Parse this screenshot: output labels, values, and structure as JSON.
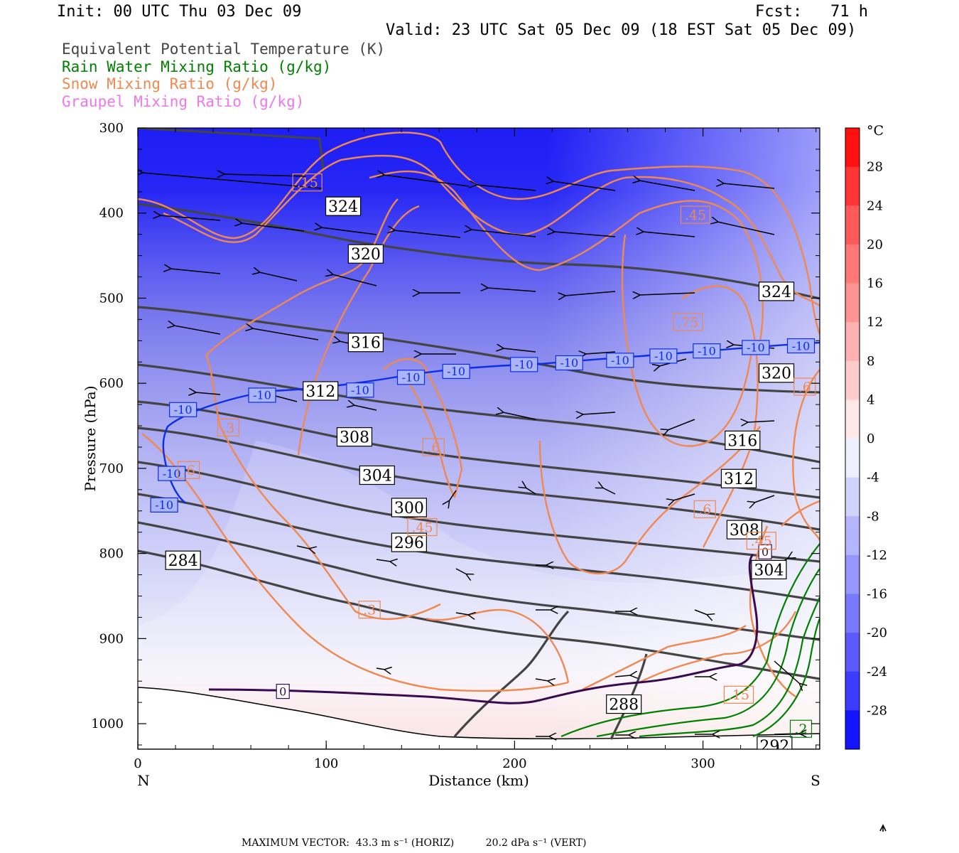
{
  "header": {
    "init": "Init: 00 UTC Thu 03 Dec 09",
    "fcst": "Fcst:   71 h",
    "valid": "Valid: 23 UTC Sat 05 Dec 09 (18 EST Sat 05 Dec 09)"
  },
  "legend": [
    {
      "label": "Equivalent Potential Temperature (K)",
      "color": "#444444"
    },
    {
      "label": "Rain Water Mixing Ratio (g/kg)",
      "color": "#008000"
    },
    {
      "label": "Snow Mixing Ratio (g/kg)",
      "color": "#f08850"
    },
    {
      "label": "Graupel Mixing Ratio (g/kg)",
      "color": "#ee77ee"
    }
  ],
  "chart_data": {
    "type": "cross-section",
    "xlabel": "Distance (km)",
    "ylabel": "Pressure (hPa)",
    "x_ticks": [
      0,
      100,
      200,
      300
    ],
    "y_ticks": [
      300,
      400,
      500,
      600,
      700,
      800,
      900,
      1000
    ],
    "xlim": [
      0,
      362
    ],
    "ylim": [
      300,
      1030
    ],
    "left_end": "N",
    "right_end": "S",
    "colorbar": {
      "unit": "°C",
      "ticks": [
        28,
        24,
        20,
        16,
        12,
        8,
        4,
        0,
        -4,
        -8,
        -12,
        -16,
        -20,
        -24,
        -28
      ]
    },
    "theta_e_labels": [
      {
        "label": "324",
        "x": 109,
        "p": 392
      },
      {
        "label": "320",
        "x": 121,
        "p": 448
      },
      {
        "label": "316",
        "x": 121,
        "p": 552
      },
      {
        "label": "312",
        "x": 97,
        "p": 609
      },
      {
        "label": "308",
        "x": 115,
        "p": 663
      },
      {
        "label": "304",
        "x": 127,
        "p": 708
      },
      {
        "label": "300",
        "x": 144,
        "p": 746
      },
      {
        "label": "296",
        "x": 144,
        "p": 787
      },
      {
        "label": "284",
        "x": 24,
        "p": 808
      },
      {
        "label": "288",
        "x": 258,
        "p": 977
      },
      {
        "label": "292",
        "x": 338,
        "p": 1026
      },
      {
        "label": "324",
        "x": 339,
        "p": 492
      },
      {
        "label": "320",
        "x": 339,
        "p": 588
      },
      {
        "label": "316",
        "x": 321,
        "p": 667
      },
      {
        "label": "312",
        "x": 319,
        "p": 712
      },
      {
        "label": "308",
        "x": 322,
        "p": 772
      },
      {
        "label": "304",
        "x": 335,
        "p": 819
      }
    ],
    "isotherm_labels": [
      {
        "label": "-10",
        "x": 24,
        "p": 631
      },
      {
        "label": "-10",
        "x": 66,
        "p": 614
      },
      {
        "label": "-10",
        "x": 118,
        "p": 608
      },
      {
        "label": "-10",
        "x": 145,
        "p": 593
      },
      {
        "label": "-10",
        "x": 169,
        "p": 586
      },
      {
        "label": "-10",
        "x": 205,
        "p": 578
      },
      {
        "label": "-10",
        "x": 229,
        "p": 576
      },
      {
        "label": "-10",
        "x": 256,
        "p": 573
      },
      {
        "label": "-10",
        "x": 279,
        "p": 568
      },
      {
        "label": "-10",
        "x": 302,
        "p": 562
      },
      {
        "label": "-10",
        "x": 328,
        "p": 558
      },
      {
        "label": "-10",
        "x": 352,
        "p": 556
      },
      {
        "label": "-10",
        "x": 18,
        "p": 706
      },
      {
        "label": "-10",
        "x": 14,
        "p": 743
      }
    ],
    "zero_labels": [
      {
        "label": "0",
        "x": 77,
        "p": 962
      },
      {
        "label": "0",
        "x": 333,
        "p": 798
      }
    ],
    "snow_labels": [
      {
        "label": ".15",
        "x": 90,
        "p": 364
      },
      {
        "label": ".45",
        "x": 296,
        "p": 402
      },
      {
        "label": ".75",
        "x": 292,
        "p": 528
      },
      {
        "label": ".6",
        "x": 354,
        "p": 604
      },
      {
        "label": ".3",
        "x": 48,
        "p": 652
      },
      {
        "label": ".6",
        "x": 157,
        "p": 675
      },
      {
        "label": ".6",
        "x": 27,
        "p": 702
      },
      {
        "label": ".6",
        "x": 301,
        "p": 748
      },
      {
        "label": ".45",
        "x": 151,
        "p": 769
      },
      {
        "label": ".45",
        "x": 331,
        "p": 785
      },
      {
        "label": ".3",
        "x": 123,
        "p": 866
      },
      {
        "label": ".15",
        "x": 319,
        "p": 966
      }
    ],
    "rain_labels": [
      {
        "label": ".2",
        "x": 352,
        "p": 1006
      }
    ]
  },
  "footer": {
    "max_vector": "MAXIMUM VECTOR:  43.3 m s⁻¹ (HORIZ)          20.2 dPa s⁻¹ (VERT)"
  }
}
